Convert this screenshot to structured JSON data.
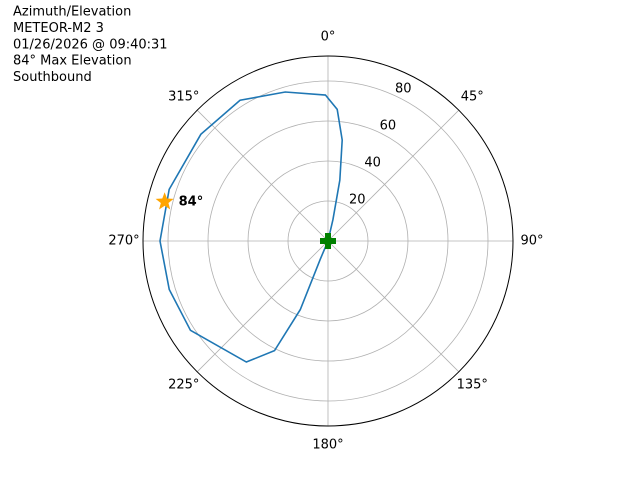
{
  "chart_data": {
    "type": "polar",
    "title": [
      "Azimuth/Elevation",
      "METEOR-M2 3",
      "01/26/2026 @ 09:40:31",
      "84° Max Elevation",
      "Southbound"
    ],
    "theta_zero": "N",
    "theta_direction": "clockwise",
    "ylim": [
      0,
      92.5
    ],
    "yticks": [
      20,
      40,
      60,
      80
    ],
    "xticks": [
      {
        "value": 0,
        "label": "0°"
      },
      {
        "value": 45,
        "label": "45°"
      },
      {
        "value": 90,
        "label": "90°"
      },
      {
        "value": 135,
        "label": "135°"
      },
      {
        "value": 180,
        "label": "180°"
      },
      {
        "value": 225,
        "label": "225°"
      },
      {
        "value": 270,
        "label": "270°"
      },
      {
        "value": 315,
        "label": "315°"
      }
    ],
    "grid": true,
    "series": [
      {
        "color": "#1f77b4",
        "theta": [
          0,
          13,
          11,
          8,
          4,
          359,
          344,
          328,
          310,
          288,
          270,
          253,
          237,
          214,
          206,
          202,
          203,
          0
        ],
        "r": [
          0,
          11,
          31,
          51,
          66,
          73,
          77.5,
          83,
          83,
          83.5,
          84,
          83,
          82,
          73,
          61,
          37,
          10,
          0
        ]
      }
    ],
    "max_point": {
      "theta": 283.5,
      "r": 84,
      "label": "84°",
      "color": "#ffa500"
    },
    "start_point": {
      "theta": 0,
      "r": 0,
      "color": "#008000"
    }
  }
}
